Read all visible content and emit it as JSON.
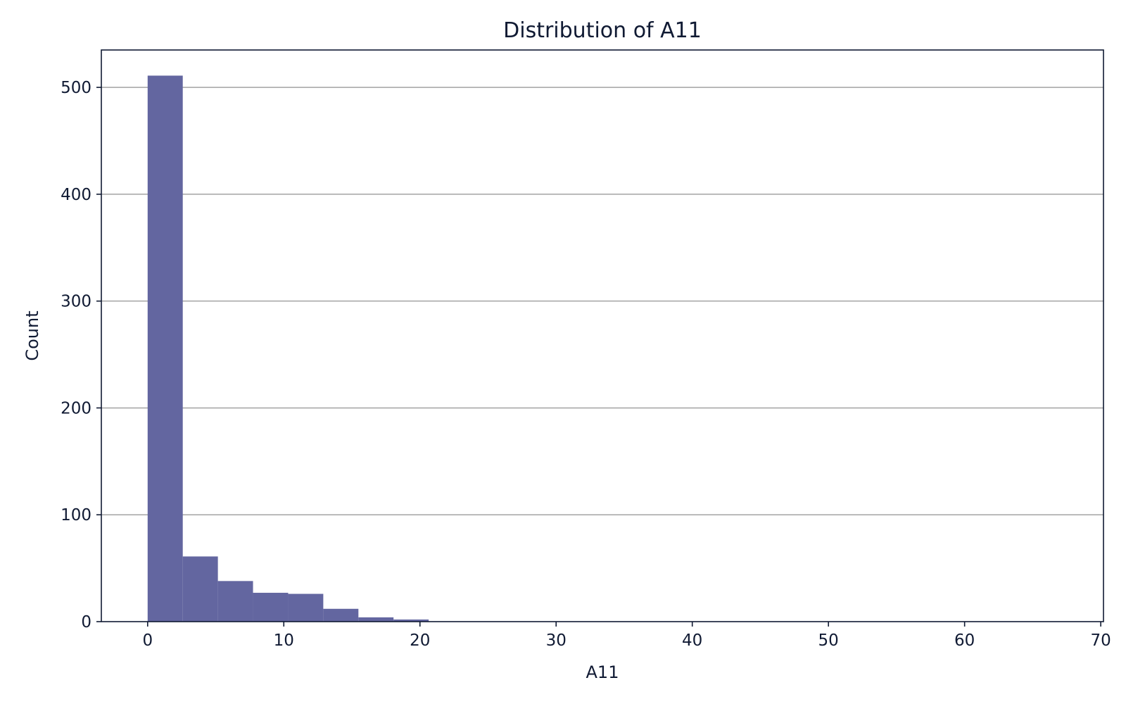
{
  "chart_data": {
    "type": "bar",
    "title": "Distribution of A11",
    "xlabel": "A11",
    "ylabel": "Count",
    "xlim": [
      -3.4,
      70.2
    ],
    "ylim": [
      0,
      535
    ],
    "xticks": [
      0,
      10,
      20,
      30,
      40,
      50,
      60,
      70
    ],
    "yticks": [
      0,
      100,
      200,
      300,
      400,
      500
    ],
    "grid": "y",
    "bar_color": "#6366a0",
    "bins": [
      {
        "x0": 0.0,
        "x1": 2.58,
        "count": 511
      },
      {
        "x0": 2.58,
        "x1": 5.16,
        "count": 61
      },
      {
        "x0": 5.16,
        "x1": 7.74,
        "count": 38
      },
      {
        "x0": 7.74,
        "x1": 10.32,
        "count": 27
      },
      {
        "x0": 10.32,
        "x1": 12.9,
        "count": 26
      },
      {
        "x0": 12.9,
        "x1": 15.48,
        "count": 12
      },
      {
        "x0": 15.48,
        "x1": 18.06,
        "count": 4
      },
      {
        "x0": 18.06,
        "x1": 20.64,
        "count": 2
      },
      {
        "x0": 20.64,
        "x1": 23.22,
        "count": 0
      },
      {
        "x0": 23.22,
        "x1": 25.8,
        "count": 0
      },
      {
        "x0": 25.8,
        "x1": 28.38,
        "count": 0
      },
      {
        "x0": 28.38,
        "x1": 30.96,
        "count": 0
      },
      {
        "x0": 30.96,
        "x1": 33.54,
        "count": 0
      },
      {
        "x0": 33.54,
        "x1": 36.12,
        "count": 0
      },
      {
        "x0": 36.12,
        "x1": 38.7,
        "count": 0
      },
      {
        "x0": 38.7,
        "x1": 41.28,
        "count": 0
      },
      {
        "x0": 41.28,
        "x1": 43.86,
        "count": 0
      },
      {
        "x0": 43.86,
        "x1": 46.44,
        "count": 0
      },
      {
        "x0": 46.44,
        "x1": 49.02,
        "count": 0
      },
      {
        "x0": 49.02,
        "x1": 51.6,
        "count": 0
      },
      {
        "x0": 51.6,
        "x1": 54.18,
        "count": 0
      },
      {
        "x0": 54.18,
        "x1": 56.76,
        "count": 0
      },
      {
        "x0": 56.76,
        "x1": 59.34,
        "count": 0
      },
      {
        "x0": 59.34,
        "x1": 61.92,
        "count": 0
      },
      {
        "x0": 61.92,
        "x1": 64.5,
        "count": 0
      },
      {
        "x0": 64.5,
        "x1": 67.08,
        "count": 0
      }
    ]
  }
}
